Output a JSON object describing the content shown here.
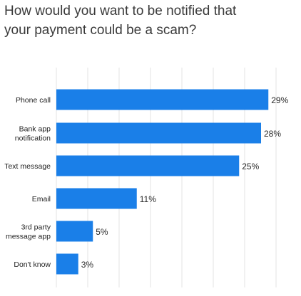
{
  "chart_data": {
    "type": "bar",
    "orientation": "horizontal",
    "title": "How would you want to be notified that\nyour payment could be a scam?",
    "categories": [
      "Phone call",
      "Bank app\nnotification",
      "Text message",
      "Email",
      "3rd party\nmessage app",
      "Don't know"
    ],
    "values": [
      29,
      28,
      25,
      11,
      5,
      3
    ],
    "value_labels": [
      "29%",
      "28%",
      "25%",
      "11%",
      "5%",
      "3%"
    ],
    "unit": "%",
    "xlim": [
      0,
      30
    ],
    "grid": true,
    "bar_color": "#1a7fe8",
    "grid_color": "#e3e3e3"
  }
}
